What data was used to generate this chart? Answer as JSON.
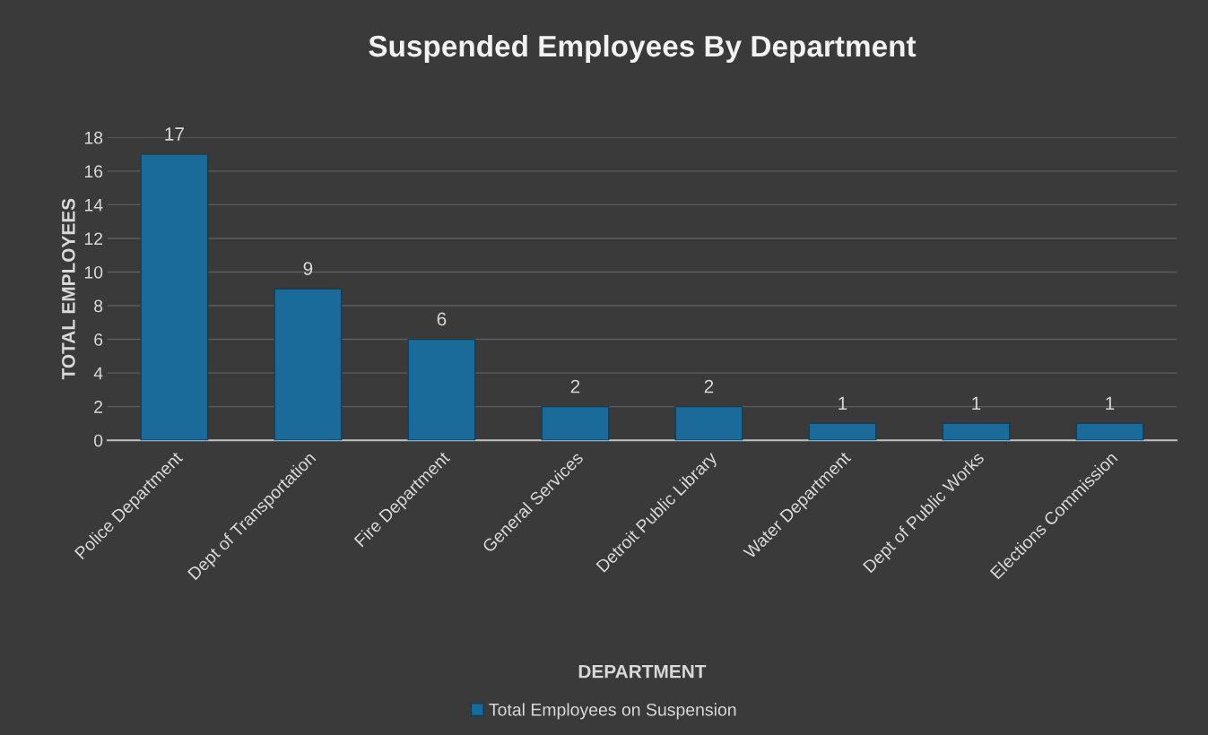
{
  "chart_data": {
    "type": "bar",
    "title": "Suspended Employees By Department",
    "xlabel": "DEPARTMENT",
    "ylabel": "TOTAL EMPLOYEES",
    "categories": [
      "Police Department",
      "Dept of Transportation",
      "Fire Department",
      "General Services",
      "Detroit Public Library",
      "Water Department",
      "Dept of Public Works",
      "Elections Commission"
    ],
    "series": [
      {
        "name": "Total Employees on Suspension",
        "color": "#1a6a9a",
        "values": [
          17,
          9,
          6,
          2,
          2,
          1,
          1,
          1
        ]
      }
    ],
    "ylim": [
      0,
      18
    ],
    "yticks": [
      0,
      2,
      4,
      6,
      8,
      10,
      12,
      14,
      16,
      18
    ],
    "grid": "y",
    "legend": "bottom",
    "data_labels": true
  }
}
